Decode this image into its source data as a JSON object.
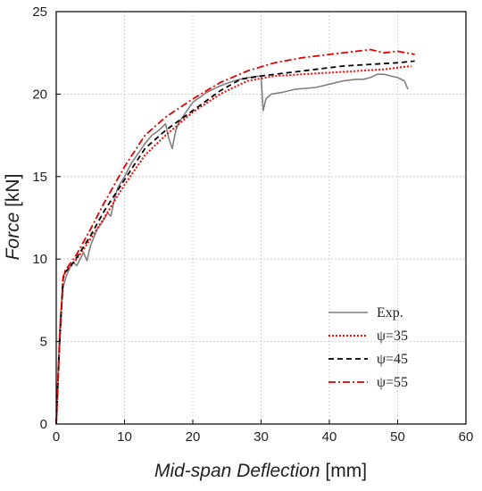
{
  "chart_data": {
    "type": "line",
    "xlabel_italic": "Mid-span Deflection",
    "xlabel_unit": " [mm]",
    "ylabel_italic": "Force",
    "ylabel_unit": " [kN]",
    "xlim": [
      0,
      60
    ],
    "ylim": [
      0,
      25
    ],
    "xticks": [
      0,
      10,
      20,
      30,
      40,
      50,
      60
    ],
    "yticks": [
      0,
      5,
      10,
      15,
      20,
      25
    ],
    "grid": true,
    "legend_position": "bottom-right",
    "series": [
      {
        "name": "Exp.",
        "color": "#808080",
        "dash": "solid",
        "x": [
          0,
          0.3,
          0.6,
          1.0,
          1.5,
          2.0,
          2.5,
          3.0,
          3.5,
          4.0,
          4.5,
          5.0,
          5.5,
          6.0,
          7.0,
          7.5,
          8.0,
          8.5,
          9.0,
          10.0,
          11.0,
          12.0,
          13.0,
          14.0,
          15.0,
          16.0,
          16.5,
          17.0,
          17.5,
          18.0,
          19.0,
          20.0,
          22.0,
          24.0,
          26.0,
          28.0,
          30.0,
          30.3,
          30.7,
          31.5,
          33.0,
          35.0,
          38.0,
          40.0,
          42.0,
          44.0,
          45.0,
          46.0,
          47.0,
          48.0,
          49.0,
          50.0,
          51.0,
          51.5
        ],
        "y": [
          0,
          3.5,
          6.5,
          8.3,
          9.0,
          9.5,
          9.8,
          9.6,
          10.0,
          10.4,
          9.9,
          10.8,
          11.3,
          11.8,
          12.4,
          12.8,
          12.6,
          13.6,
          14.3,
          15.0,
          15.8,
          16.4,
          17.0,
          17.5,
          17.8,
          18.2,
          17.3,
          16.7,
          17.8,
          18.3,
          18.9,
          19.5,
          20.1,
          20.5,
          20.8,
          21.0,
          21.1,
          19.0,
          19.7,
          20.0,
          20.1,
          20.3,
          20.4,
          20.6,
          20.8,
          20.9,
          20.9,
          21.0,
          21.2,
          21.2,
          21.1,
          21.0,
          20.8,
          20.3
        ]
      },
      {
        "name": "ψ=35",
        "color": "#ff0000",
        "dash": "dotted",
        "x": [
          0,
          0.5,
          1.0,
          1.3,
          2.0,
          3.0,
          5.0,
          7.0,
          10.0,
          13.0,
          16.0,
          20.0,
          24.0,
          28.0,
          32.0,
          36.0,
          40.0,
          44.0,
          48.0,
          52.0
        ],
        "y": [
          0,
          5.0,
          8.8,
          9.2,
          9.5,
          10.0,
          11.2,
          12.5,
          14.5,
          16.3,
          17.5,
          18.9,
          20.0,
          20.8,
          21.1,
          21.2,
          21.3,
          21.4,
          21.5,
          21.7
        ]
      },
      {
        "name": "ψ=45",
        "color": "#000000",
        "dash": "dashed",
        "x": [
          0,
          0.5,
          1.0,
          1.3,
          2.0,
          3.0,
          5.0,
          7.0,
          10.0,
          13.0,
          16.0,
          20.0,
          24.0,
          27.0,
          30.0,
          34.0,
          38.0,
          42.0,
          46.0,
          50.0,
          52.5
        ],
        "y": [
          0,
          5.0,
          8.8,
          9.2,
          9.5,
          10.1,
          11.4,
          12.9,
          14.8,
          16.7,
          17.8,
          19.0,
          20.2,
          20.9,
          21.1,
          21.3,
          21.5,
          21.7,
          21.8,
          21.9,
          22.0
        ]
      },
      {
        "name": "ψ=55",
        "color": "#e00000",
        "dash": "dashdot",
        "x": [
          0,
          0.5,
          1.0,
          1.3,
          2.0,
          3.0,
          5.0,
          7.0,
          10.0,
          13.0,
          16.0,
          20.0,
          24.0,
          28.0,
          32.0,
          36.0,
          40.0,
          44.0,
          46.0,
          48.0,
          50.0,
          52.5
        ],
        "y": [
          0,
          5.0,
          8.9,
          9.3,
          9.7,
          10.3,
          11.8,
          13.4,
          15.6,
          17.5,
          18.6,
          19.7,
          20.7,
          21.4,
          21.9,
          22.2,
          22.4,
          22.6,
          22.7,
          22.5,
          22.6,
          22.4
        ]
      }
    ]
  }
}
